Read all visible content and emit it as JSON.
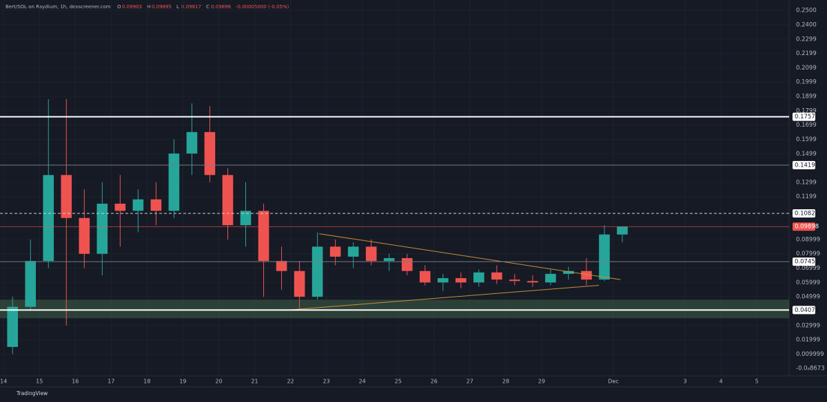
{
  "chart_data": {
    "type": "candlestick",
    "title": "Bert/SOL on Raydium, 1h, dexscreener.com",
    "ohlc_legend": [
      {
        "label": "O",
        "value": 0.09903
      },
      {
        "label": "H",
        "value": 0.09895
      },
      {
        "label": "L",
        "value": 0.09817
      },
      {
        "label": "C",
        "value": 0.09898
      }
    ],
    "change": "-0.00005000 (-0.05%)",
    "footer": "TradingView",
    "x": [
      0.25,
      0.75,
      1.25,
      1.75,
      2.25,
      2.75,
      3.25,
      3.75,
      4.25,
      4.75,
      5.25,
      5.75,
      6.25,
      6.75,
      7.25,
      7.75,
      8.25,
      8.75,
      9.25,
      9.75,
      10.25,
      10.75,
      11.25,
      11.75,
      12.25,
      12.75,
      13.25,
      13.75,
      14.25,
      14.75,
      15.25,
      15.75,
      16.25,
      16.75,
      17.25
    ],
    "open": [
      0.015,
      0.043,
      0.075,
      0.135,
      0.105,
      0.08,
      0.115,
      0.11,
      0.118,
      0.11,
      0.15,
      0.165,
      0.135,
      0.1,
      0.11,
      0.075,
      0.068,
      0.05,
      0.085,
      0.078,
      0.085,
      0.075,
      0.077,
      0.068,
      0.06,
      0.063,
      0.06,
      0.067,
      0.062,
      0.061,
      0.06,
      0.066,
      0.068,
      0.062,
      0.0935
    ],
    "high": [
      0.05,
      0.09,
      0.188,
      0.188,
      0.125,
      0.13,
      0.135,
      0.125,
      0.13,
      0.16,
      0.185,
      0.183,
      0.14,
      0.13,
      0.115,
      0.085,
      0.075,
      0.095,
      0.09,
      0.088,
      0.09,
      0.08,
      0.08,
      0.072,
      0.066,
      0.067,
      0.069,
      0.072,
      0.066,
      0.065,
      0.069,
      0.071,
      0.077,
      0.1,
      0.099
    ],
    "low": [
      0.01,
      0.04,
      0.07,
      0.03,
      0.07,
      0.065,
      0.085,
      0.095,
      0.1,
      0.105,
      0.135,
      0.13,
      0.09,
      0.085,
      0.05,
      0.055,
      0.042,
      0.048,
      0.072,
      0.07,
      0.072,
      0.068,
      0.065,
      0.058,
      0.054,
      0.056,
      0.057,
      0.059,
      0.058,
      0.057,
      0.058,
      0.062,
      0.058,
      0.061,
      0.088
    ],
    "close": [
      0.043,
      0.075,
      0.135,
      0.105,
      0.08,
      0.115,
      0.11,
      0.118,
      0.11,
      0.15,
      0.165,
      0.135,
      0.1,
      0.11,
      0.075,
      0.068,
      0.05,
      0.085,
      0.078,
      0.085,
      0.075,
      0.077,
      0.068,
      0.06,
      0.063,
      0.06,
      0.067,
      0.062,
      0.061,
      0.06,
      0.066,
      0.068,
      0.062,
      0.0935,
      0.09898
    ],
    "up_color": "#26a69a",
    "down_color": "#ef5350",
    "xlim": [
      -0.1,
      21.9
    ],
    "xticks": [
      {
        "value": 0,
        "label": "14"
      },
      {
        "value": 1,
        "label": "15"
      },
      {
        "value": 2,
        "label": "16"
      },
      {
        "value": 3,
        "label": "17"
      },
      {
        "value": 4,
        "label": "18"
      },
      {
        "value": 5,
        "label": "19"
      },
      {
        "value": 6,
        "label": "20"
      },
      {
        "value": 7,
        "label": "21"
      },
      {
        "value": 8,
        "label": "22"
      },
      {
        "value": 9,
        "label": "23"
      },
      {
        "value": 10,
        "label": "24"
      },
      {
        "value": 11,
        "label": "25"
      },
      {
        "value": 12,
        "label": "26"
      },
      {
        "value": 13,
        "label": "27"
      },
      {
        "value": 14,
        "label": "28"
      },
      {
        "value": 15,
        "label": "29"
      },
      {
        "value": 17,
        "label": "Dec"
      },
      {
        "value": 19,
        "label": "3"
      },
      {
        "value": 20,
        "label": "4"
      },
      {
        "value": 21,
        "label": "5"
      }
    ],
    "ylim": [
      -0.0052,
      0.2572
    ],
    "yticks": [
      {
        "value": 0.25,
        "label": "0.2500"
      },
      {
        "value": 0.24,
        "label": "0.2400"
      },
      {
        "value": 0.2299,
        "label": "0.2299"
      },
      {
        "value": 0.2199,
        "label": "0.2199"
      },
      {
        "value": 0.2099,
        "label": "0.2099"
      },
      {
        "value": 0.1999,
        "label": "0.1999"
      },
      {
        "value": 0.1899,
        "label": "0.1899"
      },
      {
        "value": 0.1799,
        "label": "0.1799"
      },
      {
        "value": 0.1699,
        "label": "0.1699"
      },
      {
        "value": 0.1599,
        "label": "0.1599"
      },
      {
        "value": 0.1499,
        "label": "0.1499"
      },
      {
        "value": 0.1299,
        "label": "0.1299"
      },
      {
        "value": 0.1199,
        "label": "0.1199"
      },
      {
        "value": 0.08999,
        "label": "0.08999"
      },
      {
        "value": 0.07999,
        "label": "0.07999"
      },
      {
        "value": 0.06999,
        "label": "0.06999"
      },
      {
        "value": 0.05999,
        "label": "0.05999"
      },
      {
        "value": 0.04999,
        "label": "0.04999"
      },
      {
        "value": 0.02999,
        "label": "0.02999"
      },
      {
        "value": 0.01999,
        "label": "0.01999"
      },
      {
        "value": 0.009999,
        "label": "0.009999"
      },
      {
        "value": 0,
        "label": "-0.0₈8673"
      }
    ],
    "grid": true,
    "levels": [
      {
        "value": 0.1757,
        "color": "#ffffff",
        "width": 2,
        "dash": false,
        "label_bg": "#ffffff",
        "label_fg": "#131722"
      },
      {
        "value": 0.1419,
        "color": "#787b86",
        "width": 1,
        "dash": false,
        "label_bg": "#ffffff",
        "label_fg": "#131722"
      },
      {
        "value": 0.1082,
        "color": "#d1d4dc",
        "width": 1,
        "dash": true,
        "label_bg": "#ffffff",
        "label_fg": "#131722"
      },
      {
        "value": 0.09898,
        "color": "#ef5350",
        "width": 0.6,
        "dash": false,
        "label_bg": "#ef5350",
        "label_fg": "#ffffff"
      },
      {
        "value": 0.07453,
        "color": "#787b86",
        "width": 1,
        "dash": false,
        "label_bg": "#ffffff",
        "label_fg": "#131722"
      },
      {
        "value": 0.04075,
        "color": "#ffffff",
        "width": 2,
        "dash": false,
        "label_bg": "#ffffff",
        "label_fg": "#131722"
      }
    ],
    "zone": {
      "from": 0.035,
      "to": 0.048,
      "color": "#3d5a45"
    },
    "trendlines": [
      {
        "x": [
          8.8,
          17.2
        ],
        "y": [
          0.094,
          0.062
        ],
        "color": "#c8913a"
      },
      {
        "x": [
          7.8,
          16.6
        ],
        "y": [
          0.0405,
          0.058
        ],
        "color": "#c8913a"
      }
    ]
  }
}
